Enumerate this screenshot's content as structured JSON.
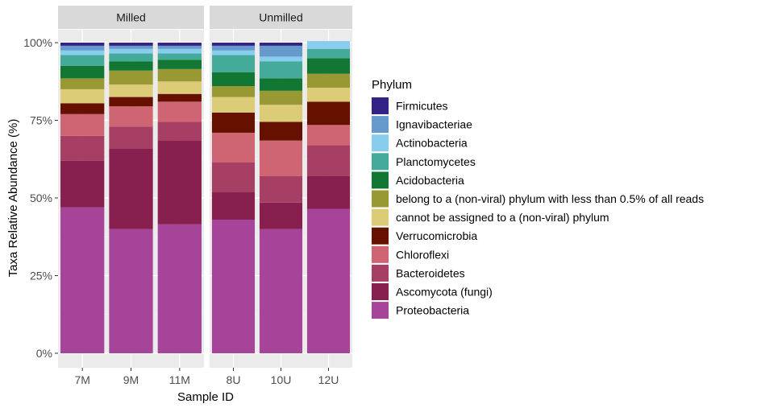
{
  "chart_data": {
    "type": "bar",
    "stacked": true,
    "percent": true,
    "xlabel": "Sample ID",
    "ylabel": "Taxa Relative Abundance (%)",
    "ylim": [
      0,
      100
    ],
    "yticks": [
      0,
      25,
      50,
      75,
      100
    ],
    "ytick_labels": [
      "0%",
      "25%",
      "50%",
      "75%",
      "100%"
    ],
    "legend_title": "Phylum",
    "legend_position": "right",
    "panel_background": "#ebebeb",
    "grid": true,
    "facets": [
      {
        "name": "Milled",
        "categories": [
          "7M",
          "9M",
          "11M"
        ]
      },
      {
        "name": "Unmilled",
        "categories": [
          "8U",
          "10U",
          "12U"
        ]
      }
    ],
    "series": [
      {
        "name": "Proteobacteria",
        "color": "#a6449a",
        "values": [
          47,
          40,
          41.5,
          43,
          40,
          46.5
        ]
      },
      {
        "name": "Ascomycota (fungi)",
        "color": "#88204f",
        "values": [
          15,
          26,
          27,
          9,
          8.5,
          10.5
        ]
      },
      {
        "name": "Bacteroidetes",
        "color": "#a63f63",
        "values": [
          8,
          7,
          6,
          9.5,
          8.5,
          10
        ]
      },
      {
        "name": "Chloroflexi",
        "color": "#cf6572",
        "values": [
          7,
          6.5,
          6.5,
          9.5,
          11.5,
          6.5
        ]
      },
      {
        "name": "Verrucomicrobia",
        "color": "#661100",
        "values": [
          3.5,
          3,
          2.5,
          6.5,
          6,
          7.5
        ]
      },
      {
        "name": "cannot be assigned to a (non-viral) phylum",
        "color": "#ddcc77",
        "values": [
          4.5,
          4,
          4,
          5,
          5.5,
          4.5
        ]
      },
      {
        "name": "belong to a (non-viral) phylum with less than 0.5% of all reads",
        "color": "#999933",
        "values": [
          3.5,
          4.5,
          4,
          3.5,
          4.5,
          4.5
        ]
      },
      {
        "name": "Acidobacteria",
        "color": "#117733",
        "values": [
          4,
          3,
          3,
          4.5,
          4,
          5
        ]
      },
      {
        "name": "Planctomycetes",
        "color": "#44aa99",
        "values": [
          3.5,
          2.5,
          2,
          5.5,
          5.5,
          3
        ]
      },
      {
        "name": "Actinobacteria",
        "color": "#88ccee",
        "values": [
          1.5,
          1.5,
          1.5,
          1.5,
          1.5,
          2.5
        ]
      },
      {
        "name": "Ignavibacteriae",
        "color": "#6699cc",
        "values": [
          1.5,
          1,
          1,
          1.5,
          3.5,
          0
        ]
      },
      {
        "name": "Firmicutes",
        "color": "#332288",
        "values": [
          1,
          1,
          1,
          1,
          1,
          0
        ]
      }
    ]
  }
}
